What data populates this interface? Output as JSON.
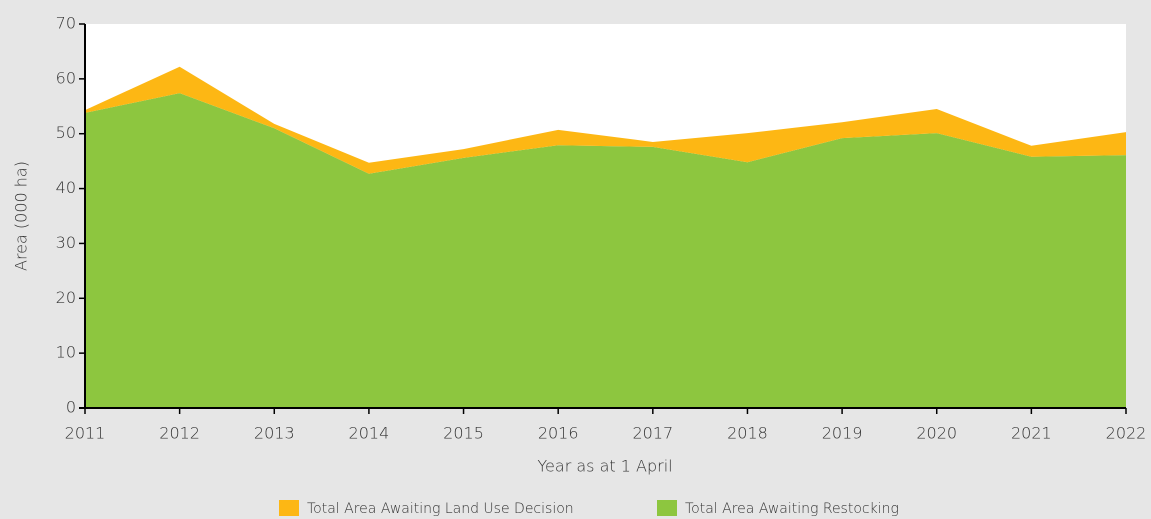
{
  "chart_data": {
    "type": "stacked_area",
    "x": [
      2011,
      2012,
      2013,
      2014,
      2015,
      2016,
      2017,
      2018,
      2019,
      2020,
      2021,
      2022
    ],
    "series": [
      {
        "name": "Total Area Awaiting Land Use Decision",
        "color": "#fdb714",
        "values": [
          0.5,
          4.8,
          0.8,
          2.0,
          1.6,
          2.8,
          0.9,
          5.3,
          2.9,
          4.4,
          2.0,
          4.2
        ]
      },
      {
        "name": "Total Area Awaiting Restocking",
        "color": "#8dc63f",
        "values": [
          53.8,
          57.4,
          51.0,
          42.7,
          45.6,
          47.9,
          47.6,
          44.8,
          49.2,
          50.1,
          45.8,
          46.1
        ]
      }
    ],
    "xlabel": "Year as at 1 April",
    "ylabel": "Area (000 ha)",
    "xlim": [
      2011,
      2022
    ],
    "xticks": [
      2011,
      2012,
      2013,
      2014,
      2015,
      2016,
      2017,
      2018,
      2019,
      2020,
      2021,
      2022
    ],
    "ylim": [
      0,
      70
    ],
    "yticks": [
      0,
      10,
      20,
      30,
      40,
      50,
      60,
      70
    ],
    "legend": "bottom"
  }
}
